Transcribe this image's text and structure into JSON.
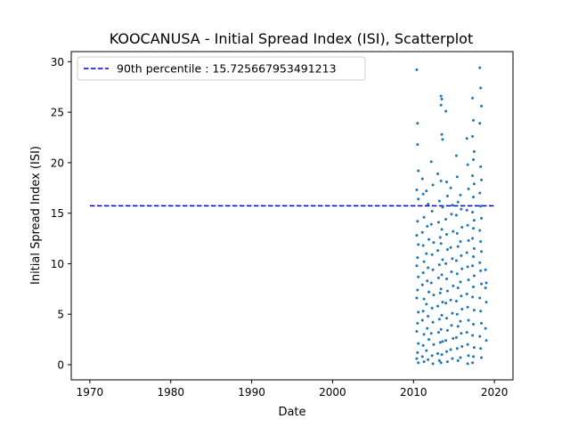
{
  "chart_data": {
    "type": "scatter",
    "title": "KOOCANUSA - Initial Spread Index (ISI), Scatterplot",
    "xlabel": "Date",
    "ylabel": "Initial Spread Index (ISI)",
    "x_axis_kind": "year",
    "xlim": [
      1967.7,
      2022.3
    ],
    "ylim": [
      -1.5,
      31.0
    ],
    "xticks": [
      1970,
      1980,
      1990,
      2000,
      2010,
      2020
    ],
    "yticks": [
      0,
      5,
      10,
      15,
      20,
      25,
      30
    ],
    "grid": false,
    "legend_position": "top-left",
    "point_color": "#1f77b4",
    "reference_line": {
      "label": "90th percentile : 15.725667953491213",
      "y": 15.725667953491213,
      "x_range": [
        1970,
        2020
      ],
      "color": "#0000cd",
      "style": "dashed"
    },
    "series": [
      {
        "marker": "point",
        "points": [
          [
            2010.4,
            29.2
          ],
          [
            2010.5,
            23.9
          ],
          [
            2010.5,
            21.8
          ],
          [
            2010.6,
            19.2
          ],
          [
            2010.4,
            17.3
          ],
          [
            2010.6,
            16.4
          ],
          [
            2010.5,
            14.2
          ],
          [
            2010.4,
            12.8
          ],
          [
            2010.6,
            11.9
          ],
          [
            2010.5,
            10.6
          ],
          [
            2010.4,
            9.8
          ],
          [
            2010.6,
            8.7
          ],
          [
            2010.5,
            7.4
          ],
          [
            2010.4,
            6.6
          ],
          [
            2010.6,
            5.2
          ],
          [
            2010.5,
            4.1
          ],
          [
            2010.4,
            3.3
          ],
          [
            2010.6,
            2.1
          ],
          [
            2010.5,
            1.2
          ],
          [
            2010.4,
            0.6
          ],
          [
            2010.6,
            0.2
          ],
          [
            2011.1,
            18.4
          ],
          [
            2011.2,
            16.9
          ],
          [
            2011.3,
            14.6
          ],
          [
            2011.1,
            13.1
          ],
          [
            2011.2,
            11.8
          ],
          [
            2011.3,
            10.2
          ],
          [
            2011.2,
            9.1
          ],
          [
            2011.1,
            7.9
          ],
          [
            2011.3,
            6.5
          ],
          [
            2011.2,
            5.3
          ],
          [
            2011.1,
            4.4
          ],
          [
            2011.3,
            3.0
          ],
          [
            2011.2,
            1.9
          ],
          [
            2011.1,
            0.8
          ],
          [
            2011.3,
            0.3
          ],
          [
            2011.6,
            17.2
          ],
          [
            2011.8,
            15.9
          ],
          [
            2011.7,
            13.7
          ],
          [
            2011.9,
            12.4
          ],
          [
            2011.6,
            11.0
          ],
          [
            2011.8,
            9.6
          ],
          [
            2011.7,
            8.3
          ],
          [
            2011.9,
            7.2
          ],
          [
            2011.6,
            6.0
          ],
          [
            2011.8,
            4.8
          ],
          [
            2011.7,
            3.6
          ],
          [
            2011.9,
            2.5
          ],
          [
            2011.6,
            1.4
          ],
          [
            2011.8,
            0.5
          ],
          [
            2012.2,
            20.1
          ],
          [
            2012.4,
            17.8
          ],
          [
            2012.3,
            15.2
          ],
          [
            2012.2,
            13.9
          ],
          [
            2012.5,
            12.1
          ],
          [
            2012.3,
            10.9
          ],
          [
            2012.4,
            9.4
          ],
          [
            2012.2,
            8.1
          ],
          [
            2012.5,
            6.9
          ],
          [
            2012.3,
            5.6
          ],
          [
            2012.4,
            4.2
          ],
          [
            2012.2,
            3.1
          ],
          [
            2012.5,
            2.0
          ],
          [
            2012.3,
            0.9
          ],
          [
            2012.4,
            0.1
          ],
          [
            2013.0,
            18.9
          ],
          [
            2013.2,
            16.2
          ],
          [
            2013.1,
            14.1
          ],
          [
            2013.3,
            12.6
          ],
          [
            2013.0,
            11.3
          ],
          [
            2013.2,
            9.9
          ],
          [
            2013.1,
            8.6
          ],
          [
            2013.3,
            7.1
          ],
          [
            2013.0,
            5.8
          ],
          [
            2013.2,
            4.5
          ],
          [
            2013.1,
            3.2
          ],
          [
            2013.3,
            2.2
          ],
          [
            2013.0,
            1.1
          ],
          [
            2013.2,
            0.4
          ],
          [
            2013.4,
            26.6
          ],
          [
            2013.5,
            26.3
          ],
          [
            2013.4,
            25.7
          ],
          [
            2013.5,
            22.8
          ],
          [
            2013.6,
            22.3
          ],
          [
            2013.4,
            18.2
          ],
          [
            2013.6,
            15.6
          ],
          [
            2013.5,
            13.4
          ],
          [
            2013.4,
            12.0
          ],
          [
            2013.6,
            10.4
          ],
          [
            2013.5,
            8.9
          ],
          [
            2013.4,
            7.5
          ],
          [
            2013.6,
            6.2
          ],
          [
            2013.5,
            4.9
          ],
          [
            2013.4,
            3.5
          ],
          [
            2013.6,
            2.3
          ],
          [
            2013.5,
            1.0
          ],
          [
            2013.4,
            0.2
          ],
          [
            2014.0,
            25.1
          ],
          [
            2014.1,
            18.1
          ],
          [
            2014.2,
            16.7
          ],
          [
            2014.0,
            14.4
          ],
          [
            2014.1,
            12.9
          ],
          [
            2014.2,
            11.4
          ],
          [
            2014.0,
            10.0
          ],
          [
            2014.1,
            8.5
          ],
          [
            2014.2,
            7.3
          ],
          [
            2014.0,
            6.1
          ],
          [
            2014.1,
            4.6
          ],
          [
            2014.2,
            3.4
          ],
          [
            2014.0,
            2.4
          ],
          [
            2014.1,
            1.3
          ],
          [
            2014.2,
            0.3
          ],
          [
            2014.6,
            17.5
          ],
          [
            2014.8,
            15.8
          ],
          [
            2014.7,
            14.9
          ],
          [
            2014.9,
            13.2
          ],
          [
            2014.6,
            11.6
          ],
          [
            2014.8,
            10.5
          ],
          [
            2014.7,
            9.2
          ],
          [
            2014.9,
            7.8
          ],
          [
            2014.6,
            6.4
          ],
          [
            2014.8,
            5.1
          ],
          [
            2014.7,
            3.9
          ],
          [
            2014.9,
            2.6
          ],
          [
            2014.6,
            1.5
          ],
          [
            2014.8,
            0.6
          ],
          [
            2015.3,
            20.7
          ],
          [
            2015.4,
            18.6
          ],
          [
            2015.5,
            16.1
          ],
          [
            2015.3,
            14.8
          ],
          [
            2015.4,
            13.0
          ],
          [
            2015.5,
            11.7
          ],
          [
            2015.3,
            10.3
          ],
          [
            2015.4,
            9.0
          ],
          [
            2015.5,
            7.6
          ],
          [
            2015.3,
            6.3
          ],
          [
            2015.4,
            5.0
          ],
          [
            2015.5,
            3.8
          ],
          [
            2015.3,
            2.7
          ],
          [
            2015.4,
            1.6
          ],
          [
            2015.5,
            0.4
          ],
          [
            2015.8,
            16.8
          ],
          [
            2015.9,
            15.4
          ],
          [
            2016.0,
            13.6
          ],
          [
            2015.8,
            12.2
          ],
          [
            2015.9,
            10.8
          ],
          [
            2016.0,
            9.5
          ],
          [
            2015.8,
            8.2
          ],
          [
            2015.9,
            6.8
          ],
          [
            2016.0,
            5.5
          ],
          [
            2015.8,
            4.3
          ],
          [
            2015.9,
            3.1
          ],
          [
            2016.0,
            1.8
          ],
          [
            2015.8,
            0.7
          ],
          [
            2016.6,
            22.4
          ],
          [
            2016.7,
            19.8
          ],
          [
            2016.8,
            17.4
          ],
          [
            2016.6,
            15.3
          ],
          [
            2016.7,
            13.8
          ],
          [
            2016.8,
            12.3
          ],
          [
            2016.6,
            11.1
          ],
          [
            2016.7,
            9.7
          ],
          [
            2016.8,
            8.4
          ],
          [
            2016.6,
            7.0
          ],
          [
            2016.7,
            5.7
          ],
          [
            2016.8,
            4.4
          ],
          [
            2016.6,
            3.2
          ],
          [
            2016.7,
            2.0
          ],
          [
            2016.8,
            0.9
          ],
          [
            2016.7,
            0.1
          ],
          [
            2017.3,
            26.4
          ],
          [
            2017.4,
            24.2
          ],
          [
            2017.3,
            22.6
          ],
          [
            2017.5,
            21.1
          ],
          [
            2017.4,
            20.3
          ],
          [
            2017.3,
            18.7
          ],
          [
            2017.5,
            17.9
          ],
          [
            2017.4,
            16.6
          ],
          [
            2017.3,
            15.1
          ],
          [
            2017.5,
            14.3
          ],
          [
            2017.4,
            13.5
          ],
          [
            2017.3,
            12.5
          ],
          [
            2017.5,
            11.5
          ],
          [
            2017.4,
            10.7
          ],
          [
            2017.3,
            9.8
          ],
          [
            2017.5,
            8.8
          ],
          [
            2017.4,
            7.7
          ],
          [
            2017.3,
            6.7
          ],
          [
            2017.5,
            5.4
          ],
          [
            2017.4,
            4.0
          ],
          [
            2017.3,
            2.9
          ],
          [
            2017.5,
            1.7
          ],
          [
            2017.4,
            0.8
          ],
          [
            2017.3,
            0.2
          ],
          [
            2018.2,
            29.4
          ],
          [
            2018.3,
            27.4
          ],
          [
            2018.4,
            25.6
          ],
          [
            2018.2,
            23.9
          ],
          [
            2018.3,
            19.6
          ],
          [
            2018.4,
            18.3
          ],
          [
            2018.2,
            17.0
          ],
          [
            2018.3,
            15.7
          ],
          [
            2018.4,
            14.5
          ],
          [
            2018.2,
            13.3
          ],
          [
            2018.3,
            12.2
          ],
          [
            2018.4,
            11.2
          ],
          [
            2018.2,
            10.1
          ],
          [
            2018.3,
            9.3
          ],
          [
            2018.4,
            8.0
          ],
          [
            2018.2,
            6.6
          ],
          [
            2018.3,
            5.3
          ],
          [
            2018.4,
            4.1
          ],
          [
            2018.2,
            2.8
          ],
          [
            2018.3,
            1.6
          ],
          [
            2018.4,
            0.7
          ],
          [
            2018.9,
            9.4
          ],
          [
            2019.0,
            8.1
          ],
          [
            2018.9,
            7.6
          ],
          [
            2019.0,
            6.2
          ],
          [
            2018.9,
            3.6
          ],
          [
            2019.0,
            2.4
          ]
        ]
      }
    ]
  }
}
